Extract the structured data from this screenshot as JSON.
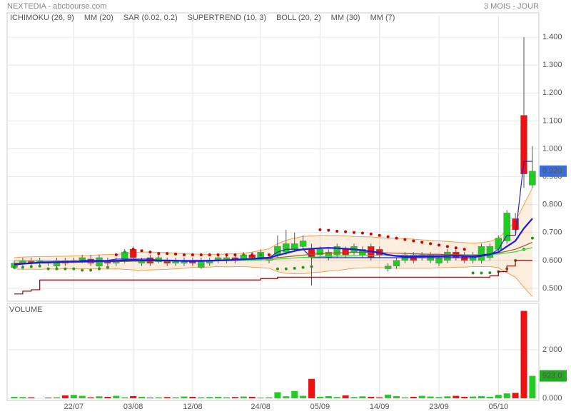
{
  "header": {
    "title": "NEXTEDIA - abcbourse.com",
    "period": "3 MOIS - JOUR"
  },
  "chart_data": [
    {
      "type": "candlestick",
      "categories": [
        null,
        null,
        null,
        null,
        null,
        null,
        null,
        "22/07",
        null,
        null,
        null,
        null,
        null,
        null,
        "03/08",
        null,
        null,
        null,
        null,
        null,
        null,
        "12/08",
        null,
        null,
        null,
        null,
        null,
        null,
        null,
        "24/08",
        null,
        null,
        null,
        null,
        null,
        null,
        "05/09",
        null,
        null,
        null,
        null,
        null,
        null,
        "14/09",
        null,
        null,
        null,
        null,
        null,
        null,
        "23/09",
        null,
        null,
        null,
        null,
        null,
        null,
        "05/10",
        null,
        null,
        null,
        null
      ],
      "open": [
        0.575,
        0.59,
        0.6,
        0.59,
        0.595,
        0.58,
        0.6,
        0.595,
        0.6,
        0.605,
        0.58,
        0.6,
        0.59,
        0.6,
        0.64,
        0.59,
        0.61,
        0.595,
        0.6,
        0.59,
        0.59,
        0.6,
        0.575,
        0.59,
        0.6,
        0.6,
        0.61,
        0.605,
        0.62,
        0.61,
        0.6,
        0.62,
        0.63,
        0.64,
        0.65,
        0.64,
        0.62,
        0.61,
        0.62,
        0.64,
        0.63,
        0.62,
        0.65,
        0.64,
        0.57,
        0.58,
        0.6,
        0.62,
        0.61,
        0.6,
        0.59,
        0.6,
        0.63,
        0.62,
        0.6,
        0.6,
        0.61,
        0.64,
        0.67,
        0.75,
        1.12,
        0.87
      ],
      "high": [
        0.6,
        0.61,
        0.61,
        0.61,
        0.6,
        0.61,
        0.61,
        0.61,
        0.62,
        0.62,
        0.62,
        0.61,
        0.61,
        0.64,
        0.65,
        0.61,
        0.62,
        0.62,
        0.61,
        0.61,
        0.61,
        0.61,
        0.61,
        0.61,
        0.62,
        0.62,
        0.62,
        0.63,
        0.63,
        0.64,
        0.62,
        0.69,
        0.71,
        0.7,
        0.69,
        0.66,
        0.65,
        0.64,
        0.66,
        0.65,
        0.66,
        0.65,
        0.66,
        0.65,
        0.59,
        0.61,
        0.63,
        0.63,
        0.63,
        0.63,
        0.62,
        0.64,
        0.64,
        0.63,
        0.63,
        0.66,
        0.66,
        0.69,
        0.78,
        0.77,
        1.4,
        1.01
      ],
      "low": [
        0.57,
        0.58,
        0.58,
        0.58,
        0.58,
        0.57,
        0.58,
        0.59,
        0.59,
        0.58,
        0.57,
        0.58,
        0.58,
        0.59,
        0.6,
        0.58,
        0.58,
        0.59,
        0.58,
        0.58,
        0.58,
        0.58,
        0.57,
        0.58,
        0.59,
        0.59,
        0.59,
        0.6,
        0.6,
        0.6,
        0.59,
        0.61,
        0.62,
        0.63,
        0.64,
        0.51,
        0.61,
        0.6,
        0.61,
        0.61,
        0.62,
        0.61,
        0.6,
        0.61,
        0.56,
        0.57,
        0.59,
        0.59,
        0.6,
        0.59,
        0.58,
        0.59,
        0.6,
        0.59,
        0.59,
        0.59,
        0.6,
        0.63,
        0.66,
        0.7,
        0.86,
        0.86
      ],
      "close": [
        0.59,
        0.6,
        0.59,
        0.6,
        0.59,
        0.6,
        0.59,
        0.6,
        0.61,
        0.59,
        0.61,
        0.59,
        0.6,
        0.63,
        0.61,
        0.6,
        0.59,
        0.61,
        0.59,
        0.6,
        0.6,
        0.59,
        0.6,
        0.6,
        0.61,
        0.61,
        0.6,
        0.62,
        0.61,
        0.63,
        0.61,
        0.65,
        0.66,
        0.66,
        0.67,
        0.61,
        0.64,
        0.63,
        0.65,
        0.62,
        0.65,
        0.64,
        0.61,
        0.62,
        0.58,
        0.6,
        0.62,
        0.6,
        0.62,
        0.62,
        0.61,
        0.63,
        0.61,
        0.6,
        0.62,
        0.65,
        0.65,
        0.68,
        0.77,
        0.71,
        0.91,
        0.92
      ],
      "up_color": "#22cc22",
      "down_color": "#ee1111",
      "ylim": [
        0.459,
        1.477
      ],
      "yticks": [
        {
          "value": 0.5,
          "label": "0.500"
        },
        {
          "value": 0.6,
          "label": "0.600"
        },
        {
          "value": 0.7,
          "label": "0.700"
        },
        {
          "value": 0.8,
          "label": "0.800"
        },
        {
          "value": 0.9,
          "label": "0.900"
        },
        {
          "value": 1.0,
          "label": "1.000"
        },
        {
          "value": 1.1,
          "label": "1.100"
        },
        {
          "value": 1.2,
          "label": "1.200"
        },
        {
          "value": 1.3,
          "label": "1.300"
        },
        {
          "value": 1.4,
          "label": "1.400"
        }
      ],
      "last_price": {
        "value": 0.92,
        "label": "0.920"
      },
      "series": [
        {
          "name": "ICHIMOKU (26, 9)",
          "color": "#2222cc",
          "style": "line",
          "values": [
            0.59,
            0.59,
            0.59,
            0.595,
            0.595,
            0.595,
            0.595,
            0.595,
            0.6,
            0.6,
            0.6,
            0.6,
            0.605,
            0.605,
            0.605,
            0.605,
            0.605,
            0.6,
            0.6,
            0.6,
            0.6,
            0.6,
            0.6,
            0.6,
            0.6,
            0.6,
            0.605,
            0.605,
            0.605,
            0.61,
            0.61,
            0.63,
            0.64,
            0.64,
            0.64,
            0.61,
            0.61,
            0.61,
            0.61,
            0.61,
            0.61,
            0.61,
            0.61,
            0.61,
            0.61,
            0.61,
            0.61,
            0.61,
            0.61,
            0.61,
            0.61,
            0.61,
            0.61,
            0.61,
            0.61,
            0.615,
            0.62,
            0.64,
            0.69,
            0.69,
            0.955,
            0.955
          ]
        },
        {
          "name": "MM (20)",
          "color": "#a0522d",
          "style": "line",
          "values": [
            0.59,
            0.59,
            0.591,
            0.591,
            0.592,
            0.592,
            0.593,
            0.593,
            0.594,
            0.594,
            0.595,
            0.595,
            0.596,
            0.596,
            0.597,
            0.597,
            0.598,
            0.598,
            0.598,
            0.598,
            0.598,
            0.599,
            0.599,
            0.599,
            0.6,
            0.6,
            0.601,
            0.602,
            0.603,
            0.605,
            0.607,
            0.61,
            0.613,
            0.616,
            0.619,
            0.622,
            0.624,
            0.626,
            0.627,
            0.628,
            0.629,
            0.629,
            0.629,
            0.628,
            0.627,
            0.626,
            0.625,
            0.624,
            0.623,
            0.622,
            0.622,
            0.621,
            0.621,
            0.62,
            0.62,
            0.621,
            0.623,
            0.627,
            0.633,
            0.64,
            0.652,
            0.665
          ]
        },
        {
          "name": "SAR (0.02, 0.2)",
          "color": "#cc0000",
          "alt_color": "#229922",
          "style": "dots",
          "values": [
            0.575,
            0.575,
            0.578,
            0.58,
            0.57,
            0.57,
            0.57,
            0.57,
            0.565,
            0.565,
            0.57,
            0.575,
            0.62,
            0.63,
            0.64,
            0.635,
            0.63,
            0.625,
            0.625,
            0.623,
            0.62,
            0.62,
            0.62,
            0.62,
            0.62,
            0.62,
            0.62,
            0.62,
            0.62,
            0.62,
            0.62,
            0.57,
            0.57,
            0.572,
            0.575,
            0.578,
            0.71,
            0.708,
            0.705,
            0.703,
            0.7,
            0.698,
            0.695,
            0.69,
            0.685,
            0.68,
            0.675,
            0.67,
            0.665,
            0.66,
            0.655,
            0.65,
            0.645,
            0.64,
            0.555,
            0.555,
            0.556,
            0.56,
            0.57,
            0.6,
            0.64,
            0.68
          ]
        },
        {
          "name": "SUPERTREND (10, 3)",
          "color": "#990000",
          "style": "step",
          "values": [
            0.48,
            0.49,
            0.495,
            0.53,
            0.53,
            0.53,
            0.53,
            0.53,
            0.53,
            0.53,
            0.53,
            0.53,
            0.53,
            0.53,
            0.53,
            0.53,
            0.53,
            0.53,
            0.53,
            0.53,
            0.53,
            0.53,
            0.53,
            0.53,
            0.53,
            0.53,
            0.53,
            0.53,
            0.53,
            0.535,
            0.535,
            0.54,
            0.54,
            0.54,
            0.54,
            0.54,
            0.54,
            0.54,
            0.54,
            0.54,
            0.54,
            0.54,
            0.54,
            0.54,
            0.54,
            0.54,
            0.54,
            0.54,
            0.54,
            0.54,
            0.54,
            0.54,
            0.54,
            0.54,
            0.54,
            0.54,
            0.545,
            0.56,
            0.58,
            0.6,
            0.6,
            0.6
          ]
        },
        {
          "name": "BOLL (20, 2)",
          "color": "#f0a050",
          "style": "band",
          "upper": [
            0.61,
            0.612,
            0.613,
            0.614,
            0.614,
            0.615,
            0.615,
            0.616,
            0.617,
            0.618,
            0.62,
            0.621,
            0.622,
            0.624,
            0.628,
            0.63,
            0.63,
            0.629,
            0.628,
            0.626,
            0.624,
            0.623,
            0.622,
            0.622,
            0.622,
            0.623,
            0.624,
            0.626,
            0.63,
            0.636,
            0.642,
            0.66,
            0.672,
            0.68,
            0.686,
            0.688,
            0.69,
            0.69,
            0.69,
            0.688,
            0.686,
            0.685,
            0.684,
            0.682,
            0.68,
            0.68,
            0.678,
            0.676,
            0.674,
            0.672,
            0.67,
            0.668,
            0.666,
            0.664,
            0.662,
            0.664,
            0.668,
            0.68,
            0.71,
            0.74,
            0.8,
            0.86
          ],
          "lower": [
            0.57,
            0.568,
            0.569,
            0.568,
            0.57,
            0.569,
            0.571,
            0.57,
            0.571,
            0.57,
            0.57,
            0.569,
            0.57,
            0.568,
            0.566,
            0.564,
            0.566,
            0.567,
            0.568,
            0.57,
            0.572,
            0.575,
            0.576,
            0.576,
            0.578,
            0.577,
            0.578,
            0.578,
            0.576,
            0.574,
            0.572,
            0.56,
            0.554,
            0.552,
            0.552,
            0.556,
            0.558,
            0.562,
            0.564,
            0.568,
            0.572,
            0.573,
            0.574,
            0.574,
            0.574,
            0.572,
            0.572,
            0.572,
            0.572,
            0.572,
            0.574,
            0.574,
            0.576,
            0.576,
            0.578,
            0.578,
            0.578,
            0.574,
            0.556,
            0.54,
            0.504,
            0.47
          ]
        },
        {
          "name": "MM (30)",
          "color": "#33dd33",
          "style": "line",
          "values": [
            0.598,
            0.598,
            0.598,
            0.598,
            0.598,
            0.598,
            0.598,
            0.598,
            0.598,
            0.598,
            0.598,
            0.598,
            0.598,
            0.598,
            0.598,
            0.598,
            0.598,
            0.598,
            0.598,
            0.598,
            0.598,
            0.598,
            0.598,
            0.598,
            0.599,
            0.599,
            0.6,
            0.6,
            0.601,
            0.602,
            0.603,
            0.605,
            0.607,
            0.609,
            0.611,
            0.612,
            0.613,
            0.614,
            0.615,
            0.616,
            0.617,
            0.618,
            0.618,
            0.618,
            0.618,
            0.618,
            0.618,
            0.618,
            0.618,
            0.618,
            0.618,
            0.618,
            0.618,
            0.619,
            0.619,
            0.62,
            0.621,
            0.623,
            0.627,
            0.631,
            0.639,
            0.646
          ]
        },
        {
          "name": "MM (7)",
          "color": "#1a1ae0",
          "style": "thick",
          "values": [
            0.585,
            0.588,
            0.59,
            0.592,
            0.593,
            0.594,
            0.595,
            0.596,
            0.597,
            0.598,
            0.598,
            0.598,
            0.599,
            0.6,
            0.601,
            0.6,
            0.6,
            0.6,
            0.6,
            0.599,
            0.598,
            0.598,
            0.598,
            0.599,
            0.6,
            0.601,
            0.602,
            0.604,
            0.606,
            0.608,
            0.61,
            0.618,
            0.626,
            0.634,
            0.64,
            0.642,
            0.644,
            0.645,
            0.644,
            0.642,
            0.64,
            0.636,
            0.632,
            0.628,
            0.62,
            0.616,
            0.614,
            0.614,
            0.615,
            0.615,
            0.615,
            0.616,
            0.617,
            0.616,
            0.615,
            0.618,
            0.622,
            0.63,
            0.65,
            0.67,
            0.715,
            0.75
          ]
        }
      ],
      "legend_colors": [
        "#1a1ad8",
        "#ee1111",
        "#cc2222",
        "#228822",
        "#f0a050",
        "#33dd33",
        "#1a1ae0"
      ]
    },
    {
      "type": "bar",
      "title": "VOLUME",
      "values": [
        60,
        50,
        40,
        0,
        30,
        40,
        120,
        140,
        100,
        40,
        80,
        60,
        100,
        40,
        90,
        60,
        30,
        40,
        50,
        40,
        70,
        60,
        40,
        50,
        60,
        40,
        50,
        70,
        60,
        30,
        40,
        250,
        80,
        300,
        100,
        800,
        60,
        90,
        50,
        120,
        50,
        80,
        60,
        40,
        150,
        90,
        40,
        60,
        100,
        70,
        50,
        80,
        100,
        60,
        70,
        90,
        60,
        140,
        200,
        220,
        3600,
        923
      ],
      "ylim": [
        -60,
        3910
      ],
      "yticks": [
        {
          "value": 0,
          "label": "0.000"
        },
        {
          "value": 2000,
          "label": "2 000"
        }
      ],
      "last_value": {
        "value": 923,
        "label": "923.0"
      }
    }
  ]
}
